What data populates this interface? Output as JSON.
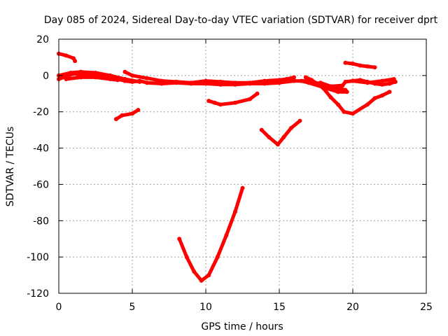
{
  "chart_data": {
    "type": "scatter",
    "title": "Day 085 of 2024, Sidereal Day-to-day VTEC variation (SDTVAR) for receiver dprt",
    "xlabel": "GPS time / hours",
    "ylabel": "SDTVAR / TECUs",
    "xlim": [
      0,
      25
    ],
    "ylim": [
      -120,
      20
    ],
    "xticks": [
      "0",
      "5",
      "10",
      "15",
      "20",
      "25"
    ],
    "yticks": [
      "20",
      "0",
      "-20",
      "-40",
      "-60",
      "-80",
      "-100",
      "-120"
    ],
    "grid": true,
    "marker_color": "#ff0000",
    "series": [
      {
        "name": "s1",
        "points": [
          [
            0,
            12
          ],
          [
            0.5,
            11
          ],
          [
            1,
            9.5
          ],
          [
            1.1,
            8
          ]
        ]
      },
      {
        "name": "s2",
        "points": [
          [
            0,
            -2
          ],
          [
            0.5,
            -0.5
          ],
          [
            1,
            1
          ],
          [
            1.5,
            0.5
          ],
          [
            2,
            1
          ],
          [
            2.5,
            0
          ],
          [
            3,
            -0.5
          ],
          [
            3.5,
            -1
          ],
          [
            4,
            -2
          ],
          [
            4.5,
            -3
          ],
          [
            5,
            -3.5
          ],
          [
            5.5,
            -3
          ],
          [
            6,
            -4
          ],
          [
            7,
            -4.5
          ],
          [
            8,
            -4
          ],
          [
            9,
            -4.5
          ],
          [
            10,
            -4.5
          ],
          [
            11,
            -5
          ],
          [
            12,
            -5
          ],
          [
            13,
            -4.5
          ],
          [
            14,
            -4.5
          ],
          [
            15,
            -4
          ],
          [
            16,
            -3
          ],
          [
            17,
            -3
          ],
          [
            18,
            -5
          ],
          [
            19,
            -7
          ],
          [
            19.5,
            -8
          ]
        ]
      },
      {
        "name": "s3",
        "points": [
          [
            0,
            0
          ],
          [
            0.8,
            1.5
          ],
          [
            1.5,
            2
          ],
          [
            2.5,
            1.5
          ],
          [
            3.5,
            0
          ],
          [
            4.5,
            -2
          ],
          [
            5.5,
            -3.5
          ]
        ]
      },
      {
        "name": "s4",
        "points": [
          [
            4.5,
            2
          ],
          [
            5,
            0
          ],
          [
            6,
            -1.5
          ],
          [
            7,
            -3
          ],
          [
            8,
            -3.5
          ],
          [
            9,
            -4
          ],
          [
            10,
            -3
          ],
          [
            11,
            -3.5
          ],
          [
            12,
            -4
          ],
          [
            13,
            -4
          ],
          [
            14,
            -3
          ],
          [
            15,
            -2.5
          ],
          [
            15.5,
            -2
          ],
          [
            16,
            -1
          ]
        ]
      },
      {
        "name": "s5",
        "points": [
          [
            0.5,
            -2
          ],
          [
            1.5,
            -1
          ],
          [
            2.5,
            -1
          ],
          [
            3.5,
            -2
          ],
          [
            4,
            -2.5
          ]
        ]
      },
      {
        "name": "s6",
        "points": [
          [
            3.9,
            -24
          ],
          [
            4.3,
            -22
          ],
          [
            5,
            -21
          ],
          [
            5.4,
            -19
          ]
        ]
      },
      {
        "name": "s7",
        "points": [
          [
            10.2,
            -14
          ],
          [
            10.6,
            -15
          ],
          [
            11,
            -16
          ],
          [
            12,
            -15
          ],
          [
            13,
            -13
          ],
          [
            13.5,
            -10
          ]
        ]
      },
      {
        "name": "s8",
        "points": [
          [
            13.8,
            -30
          ],
          [
            14.3,
            -34
          ],
          [
            14.9,
            -38
          ],
          [
            15.3,
            -34
          ],
          [
            15.8,
            -29
          ],
          [
            16.4,
            -25
          ]
        ]
      },
      {
        "name": "s9",
        "points": [
          [
            8.2,
            -90
          ],
          [
            8.7,
            -100
          ],
          [
            9.2,
            -108
          ],
          [
            9.7,
            -113
          ],
          [
            10.2,
            -110
          ],
          [
            10.8,
            -100
          ],
          [
            11.4,
            -88
          ],
          [
            12,
            -75
          ],
          [
            12.5,
            -62
          ]
        ]
      },
      {
        "name": "s10",
        "points": [
          [
            16.8,
            -1
          ],
          [
            17.2,
            -2.5
          ],
          [
            18,
            -7
          ],
          [
            18.5,
            -12
          ],
          [
            19,
            -16
          ],
          [
            19.4,
            -20
          ],
          [
            20,
            -21
          ],
          [
            21,
            -16
          ],
          [
            21.5,
            -12.5
          ],
          [
            22,
            -11
          ],
          [
            22.5,
            -9
          ]
        ]
      },
      {
        "name": "s11",
        "points": [
          [
            17.8,
            -4
          ],
          [
            18.5,
            -6
          ],
          [
            19.3,
            -5.5
          ],
          [
            19.5,
            -3.5
          ],
          [
            20,
            -3
          ],
          [
            20.5,
            -2.5
          ],
          [
            21,
            -3.5
          ],
          [
            21.5,
            -4.5
          ],
          [
            22,
            -5
          ],
          [
            22.5,
            -4.5
          ],
          [
            22.9,
            -3.5
          ]
        ]
      },
      {
        "name": "s12",
        "points": [
          [
            16.5,
            -3
          ],
          [
            17,
            -4
          ],
          [
            18,
            -6.5
          ],
          [
            19,
            -9
          ],
          [
            19.6,
            -9
          ]
        ]
      },
      {
        "name": "s13",
        "points": [
          [
            19.5,
            7
          ],
          [
            20,
            6.5
          ],
          [
            20.5,
            5.5
          ],
          [
            21,
            5
          ],
          [
            21.5,
            4.5
          ]
        ]
      },
      {
        "name": "s14",
        "points": [
          [
            20,
            -3
          ],
          [
            21,
            -4
          ],
          [
            22,
            -3
          ],
          [
            22.8,
            -2
          ]
        ]
      }
    ]
  }
}
